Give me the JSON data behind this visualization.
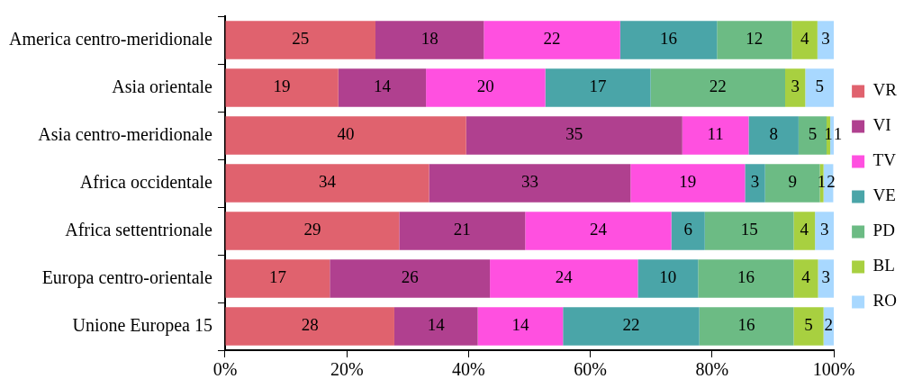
{
  "chart_data": {
    "type": "bar",
    "orientation": "horizontal",
    "stacked": true,
    "categories": [
      "America centro-meridionale",
      "Asia orientale",
      "Asia centro-meridionale",
      "Africa occidentale",
      "Africa settentrionale",
      "Europa centro-orientale",
      "Unione Europea 15"
    ],
    "xlim": [
      0,
      100
    ],
    "xticks": [
      {
        "value": 0,
        "label": "0%"
      },
      {
        "value": 20,
        "label": "20%"
      },
      {
        "value": 40,
        "label": "40%"
      },
      {
        "value": 60,
        "label": "60%"
      },
      {
        "value": 80,
        "label": "80%"
      },
      {
        "value": 100,
        "label": "100%"
      }
    ],
    "grid": false,
    "legend": "right",
    "series": [
      {
        "name": "VR",
        "color": "#e0626e",
        "values": [
          24.7,
          18.6,
          39.6,
          33.5,
          28.6,
          17.2,
          27.8
        ],
        "value_labels": [
          "25",
          "19",
          "40",
          "34",
          "29",
          "17",
          "28"
        ]
      },
      {
        "name": "VI",
        "color": "#b0408f",
        "values": [
          17.8,
          14.4,
          35.5,
          33.1,
          20.7,
          26.3,
          13.7
        ],
        "value_labels": [
          "18",
          "14",
          "35",
          "33",
          "21",
          "26",
          "14"
        ]
      },
      {
        "name": "TV",
        "color": "#ff50e0",
        "values": [
          22.4,
          19.6,
          10.9,
          18.8,
          24.0,
          24.3,
          14.0
        ],
        "value_labels": [
          "22",
          "20",
          "11",
          "19",
          "24",
          "24",
          "14"
        ]
      },
      {
        "name": "VE",
        "color": "#4aa5a8",
        "values": [
          15.9,
          17.3,
          8.2,
          3.3,
          5.5,
          9.9,
          22.4
        ],
        "value_labels": [
          "16",
          "17",
          "8",
          "3",
          "6",
          "10",
          "22"
        ]
      },
      {
        "name": "PD",
        "color": "#6cbb84",
        "values": [
          12.3,
          22.1,
          4.6,
          9.0,
          14.6,
          15.7,
          15.5
        ],
        "value_labels": [
          "12",
          "22",
          "5",
          "9",
          "15",
          "16",
          "16"
        ]
      },
      {
        "name": "BL",
        "color": "#a8d040",
        "values": [
          4.2,
          3.3,
          0.6,
          0.6,
          3.5,
          4.0,
          4.9
        ],
        "value_labels": [
          "4",
          "3",
          "1",
          "1",
          "4",
          "4",
          "5"
        ]
      },
      {
        "name": "RO",
        "color": "#a8d8ff",
        "values": [
          2.7,
          4.7,
          0.6,
          1.6,
          3.1,
          2.6,
          1.7
        ],
        "value_labels": [
          "3",
          "5",
          "1",
          "2",
          "3",
          "3",
          "2"
        ]
      }
    ]
  }
}
